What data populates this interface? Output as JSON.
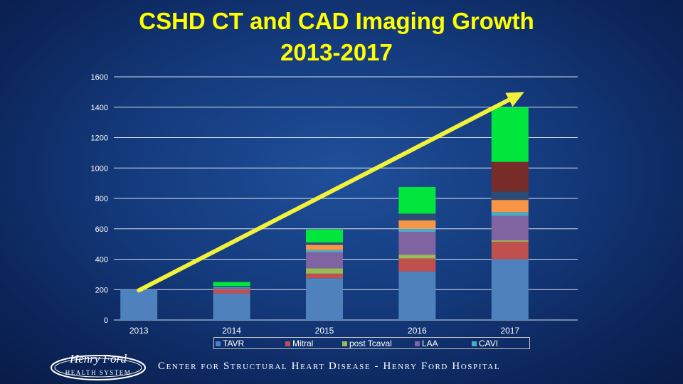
{
  "slide": {
    "title_line1": "CSHD CT and CAD Imaging Growth",
    "title_line2": "2013-2017"
  },
  "colors": {
    "title": "#ffff00",
    "trend_arrow": "#f2f23a",
    "gridline": "#ffffff",
    "axis_text": "#ffffff"
  },
  "chart_data": {
    "type": "bar",
    "stacked": true,
    "categories": [
      "2013",
      "2014",
      "2015",
      "2016",
      "2017"
    ],
    "ylim": [
      0,
      1600
    ],
    "yticks": [
      0,
      200,
      400,
      600,
      800,
      1000,
      1200,
      1400,
      1600
    ],
    "grid": true,
    "legend_position": "bottom",
    "series": [
      {
        "name": "TAVR",
        "color": "#4f81bd",
        "values": [
          200,
          175,
          275,
          320,
          400
        ]
      },
      {
        "name": "Mitral",
        "color": "#c0504d",
        "values": [
          0,
          25,
          30,
          85,
          115
        ]
      },
      {
        "name": "post Tcaval",
        "color": "#9bbb59",
        "values": [
          0,
          0,
          35,
          25,
          10
        ]
      },
      {
        "name": "LAA",
        "color": "#8064a2",
        "values": [
          0,
          10,
          105,
          150,
          160
        ]
      },
      {
        "name": "CAVI",
        "color": "#4bacc6",
        "values": [
          0,
          5,
          15,
          20,
          25
        ]
      },
      {
        "name": "",
        "color": "#f79646",
        "values": [
          0,
          0,
          35,
          55,
          80
        ]
      },
      {
        "name": "",
        "color": "#2c4d75",
        "values": [
          0,
          8,
          15,
          45,
          55
        ]
      },
      {
        "name": "",
        "color": "#772c2a",
        "values": [
          0,
          0,
          0,
          0,
          195
        ]
      },
      {
        "name": "",
        "color": "#00e63c",
        "values": [
          0,
          27,
          85,
          175,
          360
        ]
      }
    ],
    "trend_arrow": {
      "from": [
        0,
        195
      ],
      "to": [
        4,
        1500
      ]
    }
  },
  "footer": {
    "logo_text": "Henry Ford Health System",
    "text": "Center for Structural Heart Disease - Henry Ford Hospital"
  }
}
